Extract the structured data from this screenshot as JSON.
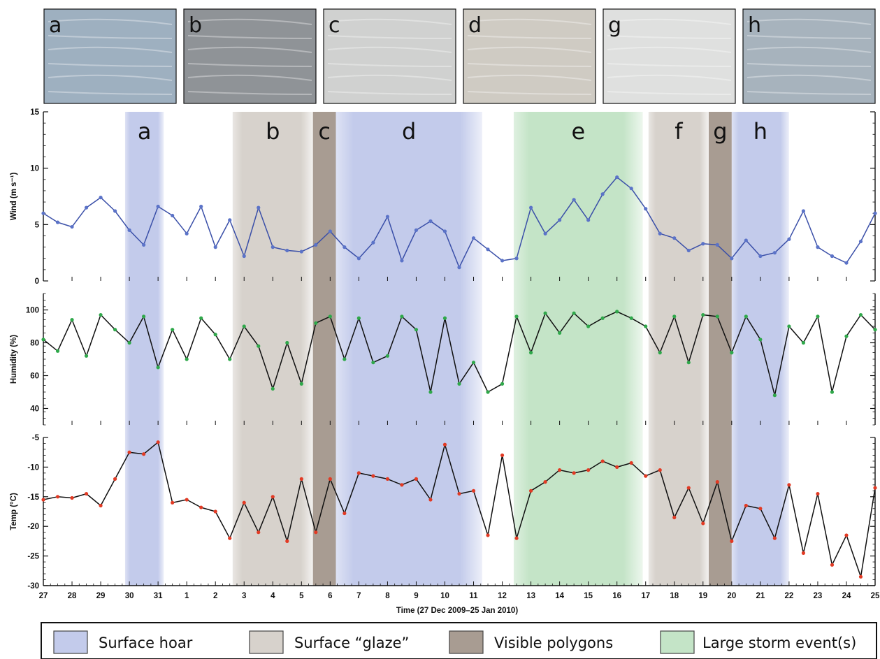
{
  "photos": [
    {
      "label": "a",
      "tone": "#9eb0c0"
    },
    {
      "label": "b",
      "tone": "#8f9397"
    },
    {
      "label": "c",
      "tone": "#d0d1d0"
    },
    {
      "label": "d",
      "tone": "#cfcbc3"
    },
    {
      "label": "g",
      "tone": "#dfe0df"
    },
    {
      "label": "h",
      "tone": "#a7b3bd"
    }
  ],
  "chart_data": {
    "type": "line",
    "xlabel": "Time (27 Dec 2009–25 Jan 2010)",
    "x_ticks": [
      "27",
      "28",
      "29",
      "30",
      "31",
      "1",
      "2",
      "3",
      "4",
      "5",
      "6",
      "7",
      "8",
      "9",
      "10",
      "11",
      "12",
      "13",
      "14",
      "15",
      "16",
      "17",
      "18",
      "19",
      "20",
      "21",
      "22",
      "23",
      "24",
      "25"
    ],
    "xlim_days": [
      0,
      29
    ],
    "bands": [
      {
        "label": "a",
        "type": "hoar",
        "start": "29.8 Dec",
        "end": "31.2 Dec",
        "from": 2.85,
        "to": 4.2
      },
      {
        "label": "b",
        "type": "glaze",
        "start": "2.6 Jan",
        "end": "5.4 Jan",
        "from": 6.6,
        "to": 9.4
      },
      {
        "label": "c",
        "type": "polygons",
        "start": "5.4 Jan",
        "end": "6.2 Jan",
        "from": 9.4,
        "to": 10.2
      },
      {
        "label": "d",
        "type": "hoar",
        "start": "6.2 Jan",
        "end": "11.2 Jan",
        "from": 10.2,
        "to": 15.3
      },
      {
        "label": "e",
        "type": "storm",
        "start": "12.5 Jan",
        "end": "16.9 Jan",
        "from": 16.4,
        "to": 20.9
      },
      {
        "label": "f",
        "type": "glaze",
        "start": "17.1 Jan",
        "end": "19.2 Jan",
        "from": 21.1,
        "to": 23.2
      },
      {
        "label": "g",
        "type": "polygons",
        "start": "19.2 Jan",
        "end": "20.0 Jan",
        "from": 23.2,
        "to": 24.0
      },
      {
        "label": "h",
        "type": "hoar",
        "start": "20.0 Jan",
        "end": "22.0 Jan",
        "from": 24.0,
        "to": 26.0
      }
    ],
    "band_colors": {
      "hoar": "#c3cbeb",
      "glaze": "#d7d2cc",
      "polygons": "#a89c92",
      "storm": "#c4e4c7"
    },
    "panels": [
      {
        "id": "wind",
        "ylabel": "Wind (m s⁻¹)",
        "ylim": [
          0,
          15
        ],
        "yticks": [
          0,
          5,
          10,
          15
        ],
        "series_color": "#3a4fa8",
        "marker_color": "#5b73c8",
        "x": [
          0,
          0.5,
          1,
          1.5,
          2,
          2.5,
          3,
          3.5,
          4,
          4.5,
          5,
          5.5,
          6,
          6.5,
          7,
          7.5,
          8,
          8.5,
          9,
          9.5,
          10,
          10.5,
          11,
          11.5,
          12,
          12.5,
          13,
          13.5,
          14,
          14.5,
          15,
          15.5,
          16,
          16.5,
          17,
          17.5,
          18,
          18.5,
          19,
          19.5,
          20,
          20.5,
          21,
          21.5,
          22,
          22.5,
          23,
          23.5,
          24,
          24.5,
          25,
          25.5,
          26,
          26.5,
          27,
          27.5,
          28,
          28.5,
          29
        ],
        "y": [
          6.0,
          5.2,
          4.8,
          6.5,
          7.4,
          6.2,
          4.5,
          3.2,
          6.6,
          5.8,
          4.2,
          6.6,
          3.0,
          5.4,
          2.2,
          6.5,
          3.0,
          2.7,
          2.6,
          3.2,
          4.4,
          3.0,
          2.0,
          3.4,
          5.7,
          1.8,
          4.5,
          5.3,
          4.4,
          1.2,
          3.8,
          2.8,
          1.8,
          2.0,
          6.5,
          4.2,
          5.4,
          7.2,
          5.4,
          7.7,
          9.2,
          8.2,
          6.4,
          4.2,
          3.8,
          2.7,
          3.3,
          3.2,
          2.0,
          3.6,
          2.2,
          2.5,
          3.7,
          6.2,
          3.0,
          2.2,
          1.6,
          3.5,
          6.0
        ]
      },
      {
        "id": "humidity",
        "ylabel": "Humidity (%)",
        "ylim": [
          30,
          110
        ],
        "yticks": [
          40,
          60,
          80,
          100
        ],
        "series_color": "#101010",
        "marker_color": "#2fa84a",
        "x": [
          0,
          0.5,
          1,
          1.5,
          2,
          2.5,
          3,
          3.5,
          4,
          4.5,
          5,
          5.5,
          6,
          6.5,
          7,
          7.5,
          8,
          8.5,
          9,
          9.5,
          10,
          10.5,
          11,
          11.5,
          12,
          12.5,
          13,
          13.5,
          14,
          14.5,
          15,
          15.5,
          16,
          16.5,
          17,
          17.5,
          18,
          18.5,
          19,
          19.5,
          20,
          20.5,
          21,
          21.5,
          22,
          22.5,
          23,
          23.5,
          24,
          24.5,
          25,
          25.5,
          26,
          26.5,
          27,
          27.5,
          28,
          28.5,
          29
        ],
        "y": [
          82,
          75,
          94,
          72,
          97,
          88,
          80,
          96,
          65,
          88,
          70,
          95,
          85,
          70,
          90,
          78,
          52,
          80,
          55,
          92,
          96,
          70,
          95,
          68,
          72,
          96,
          88,
          50,
          95,
          55,
          68,
          50,
          55,
          96,
          74,
          98,
          86,
          98,
          90,
          95,
          99,
          95,
          90,
          74,
          96,
          68,
          97,
          96,
          74,
          96,
          82,
          48,
          90,
          80,
          96,
          50,
          84,
          97,
          88
        ]
      },
      {
        "id": "temp",
        "ylabel": "Temp (°C)",
        "ylim": [
          -30,
          -5
        ],
        "yticks": [
          -30,
          -25,
          -20,
          -15,
          -10,
          -5
        ],
        "series_color": "#101010",
        "marker_color": "#e23a24",
        "x": [
          0,
          0.5,
          1,
          1.5,
          2,
          2.5,
          3,
          3.5,
          4,
          4.5,
          5,
          5.5,
          6,
          6.5,
          7,
          7.5,
          8,
          8.5,
          9,
          9.5,
          10,
          10.5,
          11,
          11.5,
          12,
          12.5,
          13,
          13.5,
          14,
          14.5,
          15,
          15.5,
          16,
          16.5,
          17,
          17.5,
          18,
          18.5,
          19,
          19.5,
          20,
          20.5,
          21,
          21.5,
          22,
          22.5,
          23,
          23.5,
          24,
          24.5,
          25,
          25.5,
          26,
          26.5,
          27,
          27.5,
          28,
          28.5,
          29
        ],
        "y": [
          -15.5,
          -15.0,
          -15.2,
          -14.5,
          -16.5,
          -12.0,
          -7.5,
          -7.8,
          -5.8,
          -16.0,
          -15.5,
          -16.8,
          -17.5,
          -22.0,
          -16.0,
          -21.0,
          -15.0,
          -22.5,
          -12.0,
          -21.0,
          -12.0,
          -17.8,
          -11.0,
          -11.5,
          -12.0,
          -13.0,
          -12.0,
          -15.5,
          -6.2,
          -14.5,
          -14.0,
          -21.5,
          -8.0,
          -22.0,
          -14.0,
          -12.5,
          -10.5,
          -11.0,
          -10.5,
          -9.0,
          -10.0,
          -9.3,
          -11.5,
          -10.5,
          -18.5,
          -13.5,
          -19.5,
          -12.5,
          -22.5,
          -16.5,
          -17.0,
          -22.0,
          -13.0,
          -24.5,
          -14.5,
          -26.5,
          -21.5,
          -28.5,
          -13.5
        ]
      }
    ]
  },
  "legend": {
    "items": [
      {
        "label": "Surface hoar",
        "color": "#c3cbeb"
      },
      {
        "label": "Surface “glaze”",
        "color": "#d7d2cc"
      },
      {
        "label": "Visible polygons",
        "color": "#a89c92"
      },
      {
        "label": "Large storm event(s)",
        "color": "#c4e4c7"
      }
    ]
  }
}
